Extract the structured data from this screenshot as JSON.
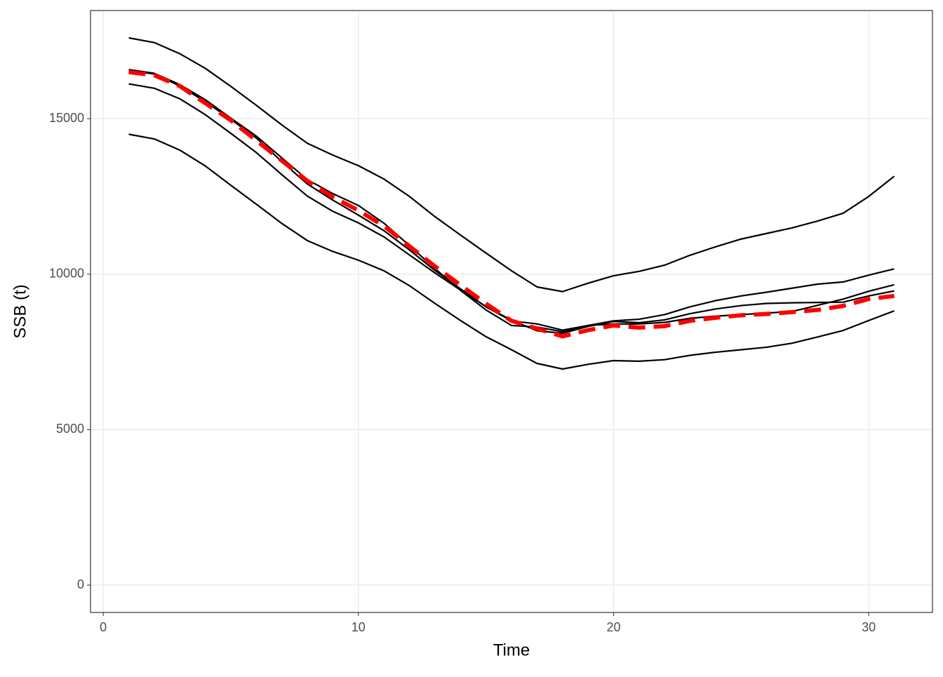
{
  "chart_data": {
    "type": "line",
    "x_label": "Time",
    "y_label": "SSB (t)",
    "x": [
      1,
      2,
      3,
      4,
      5,
      6,
      7,
      8,
      9,
      10,
      11,
      12,
      13,
      14,
      15,
      16,
      17,
      18,
      19,
      20,
      21,
      22,
      23,
      24,
      25,
      26,
      27,
      28,
      29,
      30,
      31
    ],
    "series": [
      {
        "color": "#000000",
        "linetype": "solid",
        "values": [
          17600,
          17450,
          17090,
          16620,
          16040,
          15430,
          14800,
          14210,
          13830,
          13490,
          13060,
          12500,
          11850,
          11260,
          10680,
          10110,
          9590,
          9440,
          9710,
          9950,
          10090,
          10290,
          10610,
          10880,
          11130,
          11310,
          11490,
          11710,
          11960,
          12500,
          13150
        ]
      },
      {
        "color": "#000000",
        "linetype": "solid",
        "values": [
          16580,
          16460,
          16100,
          15610,
          15020,
          14440,
          13740,
          13040,
          12590,
          12210,
          11640,
          10920,
          10180,
          9480,
          8850,
          8350,
          8300,
          8150,
          8350,
          8500,
          8550,
          8700,
          8950,
          9150,
          9300,
          9420,
          9550,
          9680,
          9750,
          9970,
          10170
        ]
      },
      {
        "color": "#000000",
        "linetype": "solid",
        "values": [
          16550,
          16440,
          16050,
          15550,
          14980,
          14380,
          13620,
          12900,
          12380,
          11900,
          11400,
          10780,
          10120,
          9530,
          8950,
          8500,
          8400,
          8200,
          8350,
          8400,
          8400,
          8450,
          8580,
          8650,
          8700,
          8750,
          8800,
          9000,
          9200,
          9450,
          9660
        ]
      },
      {
        "color": "#000000",
        "linetype": "solid",
        "values": [
          16120,
          15980,
          15640,
          15130,
          14530,
          13910,
          13200,
          12510,
          12020,
          11650,
          11200,
          10620,
          10040,
          9490,
          8960,
          8520,
          8180,
          8100,
          8320,
          8480,
          8440,
          8530,
          8730,
          8880,
          8990,
          9060,
          9080,
          9090,
          9100,
          9300,
          9460
        ]
      },
      {
        "color": "#000000",
        "linetype": "solid",
        "values": [
          14500,
          14350,
          13990,
          13480,
          12860,
          12250,
          11630,
          11080,
          10730,
          10450,
          10110,
          9630,
          9060,
          8510,
          7990,
          7570,
          7130,
          6950,
          7100,
          7220,
          7200,
          7250,
          7390,
          7490,
          7570,
          7650,
          7780,
          7980,
          8190,
          8510,
          8820
        ]
      },
      {
        "color": "#ff0000",
        "linetype": "dashed",
        "values": [
          16500,
          16400,
          16050,
          15500,
          14950,
          14300,
          13650,
          13000,
          12480,
          12050,
          11550,
          10900,
          10250,
          9650,
          9050,
          8500,
          8250,
          8000,
          8200,
          8350,
          8280,
          8330,
          8500,
          8600,
          8680,
          8720,
          8780,
          8850,
          8980,
          9200,
          9300
        ]
      }
    ],
    "xlim": [
      -0.5,
      32.5
    ],
    "xticks": [
      0,
      10,
      20,
      30
    ],
    "ylim": [
      -880,
      18480
    ],
    "yticks": [
      0,
      5000,
      10000,
      15000
    ],
    "grid": true
  }
}
